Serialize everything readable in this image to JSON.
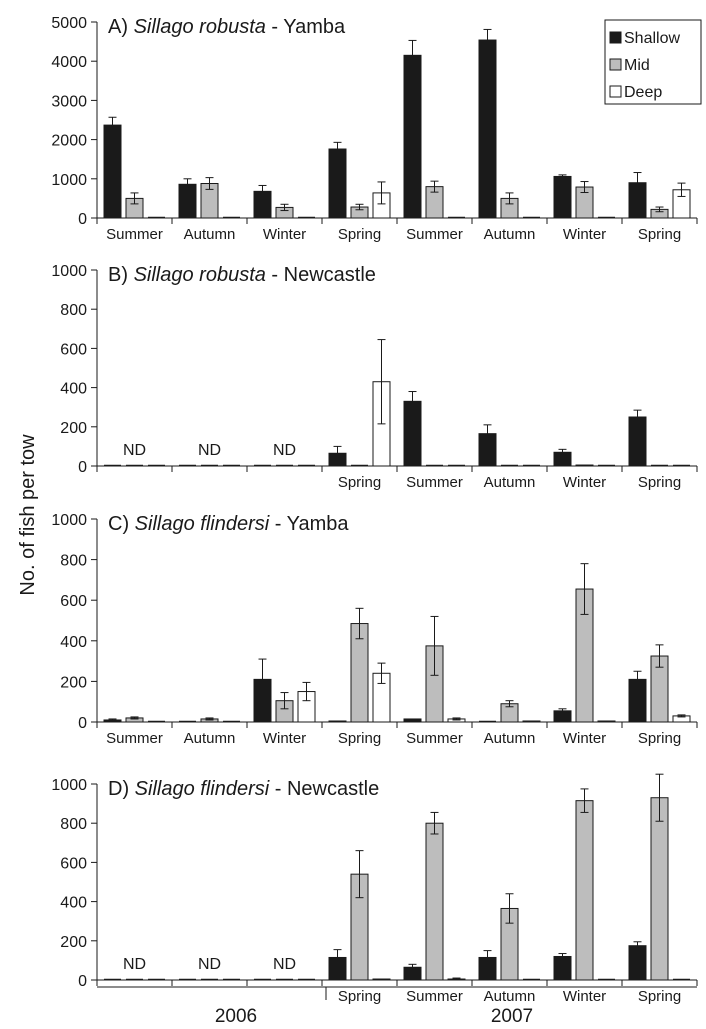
{
  "figure": {
    "ylabel": "No. of fish per tow",
    "years": [
      "2006",
      "2007"
    ],
    "legend": [
      {
        "name": "Shallow",
        "color": "#1a1a1a"
      },
      {
        "name": "Mid",
        "color": "#bdbdbd"
      },
      {
        "name": "Deep",
        "color": "#ffffff"
      }
    ],
    "nd_label": "ND"
  },
  "chart_data": [
    {
      "type": "bar",
      "title_prefix": "A) ",
      "title_species": "Sillago robusta",
      "title_suffix": " - Yamba",
      "categories": [
        "Summer",
        "Autumn",
        "Winter",
        "Spring",
        "Summer",
        "Autumn",
        "Winter",
        "Spring"
      ],
      "ylim": [
        0,
        5000
      ],
      "yticks": [
        0,
        1000,
        2000,
        3000,
        4000,
        5000
      ],
      "series": [
        {
          "name": "Shallow",
          "values": [
            2370,
            860,
            680,
            1760,
            4150,
            4540,
            1060,
            900
          ],
          "errors": [
            200,
            140,
            150,
            170,
            380,
            270,
            40,
            260
          ]
        },
        {
          "name": "Mid",
          "values": [
            500,
            880,
            270,
            280,
            800,
            500,
            790,
            220
          ],
          "errors": [
            140,
            150,
            80,
            70,
            140,
            140,
            140,
            60
          ]
        },
        {
          "name": "Deep",
          "values": [
            0,
            0,
            0,
            640,
            0,
            0,
            0,
            720
          ],
          "errors": [
            0,
            0,
            0,
            280,
            0,
            0,
            0,
            170
          ]
        }
      ],
      "nd": [
        false,
        false,
        false,
        false,
        false,
        false,
        false,
        false
      ]
    },
    {
      "type": "bar",
      "title_prefix": "B) ",
      "title_species": "Sillago robusta",
      "title_suffix": " - Newcastle",
      "categories": [
        "",
        "",
        "",
        "Spring",
        "Summer",
        "Autumn",
        "Winter",
        "Spring"
      ],
      "ylim": [
        0,
        1000
      ],
      "yticks": [
        0,
        200,
        400,
        600,
        800,
        1000
      ],
      "series": [
        {
          "name": "Shallow",
          "values": [
            0,
            0,
            0,
            65,
            330,
            165,
            70,
            250
          ],
          "errors": [
            0,
            0,
            0,
            35,
            50,
            45,
            15,
            35
          ]
        },
        {
          "name": "Mid",
          "values": [
            0,
            0,
            0,
            0,
            0,
            0,
            5,
            0
          ],
          "errors": [
            0,
            0,
            0,
            0,
            0,
            0,
            0,
            0
          ]
        },
        {
          "name": "Deep",
          "values": [
            0,
            0,
            0,
            430,
            0,
            0,
            0,
            0
          ],
          "errors": [
            0,
            0,
            0,
            215,
            0,
            0,
            0,
            0
          ]
        }
      ],
      "nd": [
        true,
        true,
        true,
        false,
        false,
        false,
        false,
        false
      ]
    },
    {
      "type": "bar",
      "title_prefix": "C) ",
      "title_species": "Sillago flindersi",
      "title_suffix": " - Yamba",
      "categories": [
        "Summer",
        "Autumn",
        "Winter",
        "Spring",
        "Summer",
        "Autumn",
        "Winter",
        "Spring"
      ],
      "ylim": [
        0,
        1000
      ],
      "yticks": [
        0,
        200,
        400,
        600,
        800,
        1000
      ],
      "series": [
        {
          "name": "Shallow",
          "values": [
            10,
            0,
            210,
            5,
            15,
            0,
            55,
            210
          ],
          "errors": [
            5,
            0,
            100,
            0,
            0,
            0,
            10,
            40
          ]
        },
        {
          "name": "Mid",
          "values": [
            20,
            15,
            105,
            485,
            375,
            90,
            655,
            325
          ],
          "errors": [
            5,
            5,
            40,
            75,
            145,
            15,
            125,
            55
          ]
        },
        {
          "name": "Deep",
          "values": [
            0,
            0,
            150,
            240,
            15,
            5,
            5,
            30
          ],
          "errors": [
            0,
            0,
            45,
            50,
            5,
            0,
            0,
            5
          ]
        }
      ],
      "nd": [
        false,
        false,
        false,
        false,
        false,
        false,
        false,
        false
      ]
    },
    {
      "type": "bar",
      "title_prefix": "D) ",
      "title_species": "Sillago flindersi",
      "title_suffix": " - Newcastle",
      "categories": [
        "",
        "",
        "",
        "Spring",
        "Summer",
        "Autumn",
        "Winter",
        "Spring"
      ],
      "ylim": [
        0,
        1000
      ],
      "yticks": [
        0,
        200,
        400,
        600,
        800,
        1000
      ],
      "series": [
        {
          "name": "Shallow",
          "values": [
            0,
            0,
            0,
            115,
            65,
            115,
            120,
            175
          ],
          "errors": [
            0,
            0,
            0,
            40,
            15,
            35,
            15,
            20
          ]
        },
        {
          "name": "Mid",
          "values": [
            0,
            0,
            0,
            540,
            800,
            365,
            915,
            930
          ],
          "errors": [
            0,
            0,
            0,
            120,
            55,
            75,
            60,
            120
          ]
        },
        {
          "name": "Deep",
          "values": [
            0,
            0,
            0,
            5,
            5,
            0,
            0,
            0
          ],
          "errors": [
            0,
            0,
            0,
            0,
            5,
            0,
            0,
            0
          ]
        }
      ],
      "nd": [
        true,
        true,
        true,
        false,
        false,
        false,
        false,
        false
      ]
    }
  ]
}
